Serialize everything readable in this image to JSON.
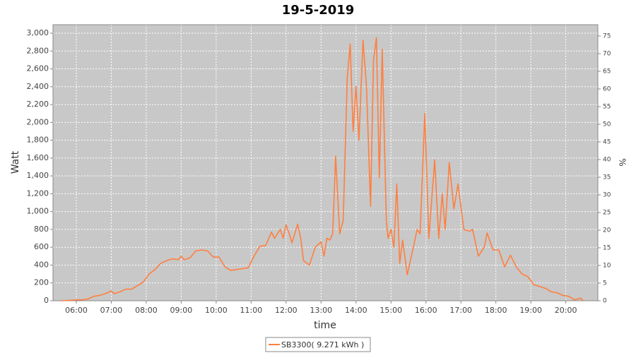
{
  "chart_data": {
    "type": "line",
    "title": "19-5-2019",
    "x_label": "time",
    "y_label": "Watt",
    "y2_label": "%",
    "x": [
      335,
      350,
      360,
      370,
      380,
      390,
      400,
      410,
      420,
      425,
      435,
      445,
      455,
      465,
      475,
      485,
      495,
      505,
      515,
      525,
      535,
      540,
      545,
      555,
      565,
      575,
      585,
      595,
      605,
      615,
      625,
      635,
      645,
      655,
      665,
      675,
      685,
      695,
      700,
      710,
      715,
      720,
      725,
      730,
      740,
      745,
      750,
      760,
      770,
      780,
      785,
      790,
      795,
      800,
      805,
      812,
      818,
      825,
      830,
      835,
      840,
      845,
      852,
      858,
      865,
      870,
      875,
      880,
      885,
      892,
      895,
      900,
      905,
      910,
      915,
      920,
      928,
      935,
      945,
      950,
      958,
      965,
      975,
      982,
      988,
      993,
      1000,
      1008,
      1015,
      1025,
      1035,
      1040,
      1050,
      1060,
      1065,
      1075,
      1085,
      1095,
      1105,
      1115,
      1125,
      1135,
      1145,
      1155,
      1165,
      1175,
      1185,
      1195,
      1205,
      1215,
      1225,
      1230
    ],
    "series": [
      {
        "name": "SB3300( 9.271 kWh )",
        "color": "#ff7f3f",
        "values": [
          0,
          5,
          10,
          10,
          20,
          50,
          60,
          80,
          110,
          80,
          100,
          130,
          130,
          170,
          210,
          300,
          350,
          420,
          450,
          470,
          460,
          500,
          460,
          480,
          560,
          570,
          560,
          490,
          490,
          380,
          340,
          350,
          360,
          370,
          500,
          610,
          620,
          770,
          700,
          800,
          700,
          850,
          760,
          650,
          860,
          700,
          450,
          400,
          600,
          660,
          500,
          700,
          680,
          750,
          1620,
          750,
          900,
          2500,
          2880,
          1900,
          2400,
          1800,
          2920,
          2400,
          1060,
          2700,
          2950,
          1380,
          2820,
          900,
          700,
          800,
          600,
          1310,
          420,
          680,
          290,
          500,
          800,
          750,
          2100,
          700,
          1580,
          700,
          1200,
          800,
          1550,
          1030,
          1310,
          800,
          780,
          800,
          500,
          600,
          760,
          570,
          570,
          380,
          510,
          380,
          300,
          270,
          180,
          160,
          140,
          100,
          90,
          60,
          50,
          10,
          30,
          0
        ]
      }
    ],
    "xlim": [
      320,
      1255
    ],
    "xticks": [
      {
        "value": 360,
        "label": "06:00"
      },
      {
        "value": 420,
        "label": "07:00"
      },
      {
        "value": 480,
        "label": "08:00"
      },
      {
        "value": 540,
        "label": "09:00"
      },
      {
        "value": 600,
        "label": "10:00"
      },
      {
        "value": 660,
        "label": "11:00"
      },
      {
        "value": 720,
        "label": "12:00"
      },
      {
        "value": 780,
        "label": "13:00"
      },
      {
        "value": 840,
        "label": "14:00"
      },
      {
        "value": 900,
        "label": "15:00"
      },
      {
        "value": 960,
        "label": "16:00"
      },
      {
        "value": 1020,
        "label": "17:00"
      },
      {
        "value": 1080,
        "label": "18:00"
      },
      {
        "value": 1140,
        "label": "19:00"
      },
      {
        "value": 1200,
        "label": "20:00"
      }
    ],
    "ylim": [
      0,
      3095
    ],
    "yticks": [
      0,
      200,
      400,
      600,
      800,
      {
        "value": 1000,
        "label": "1,000"
      },
      {
        "value": 1200,
        "label": "1,200"
      },
      {
        "value": 1400,
        "label": "1,400"
      },
      {
        "value": 1600,
        "label": "1,600"
      },
      {
        "value": 1800,
        "label": "1,800"
      },
      {
        "value": 2000,
        "label": "2,000"
      },
      {
        "value": 2200,
        "label": "2,200"
      },
      {
        "value": 2400,
        "label": "2,400"
      },
      {
        "value": 2600,
        "label": "2,600"
      },
      {
        "value": 2800,
        "label": "2,800"
      },
      {
        "value": 3000,
        "label": "3,000"
      }
    ],
    "y2lim": [
      0,
      78.2
    ],
    "y2ticks": [
      0,
      5,
      10,
      15,
      20,
      25,
      30,
      35,
      40,
      45,
      50,
      55,
      60,
      65,
      70,
      75
    ],
    "grid": true
  }
}
